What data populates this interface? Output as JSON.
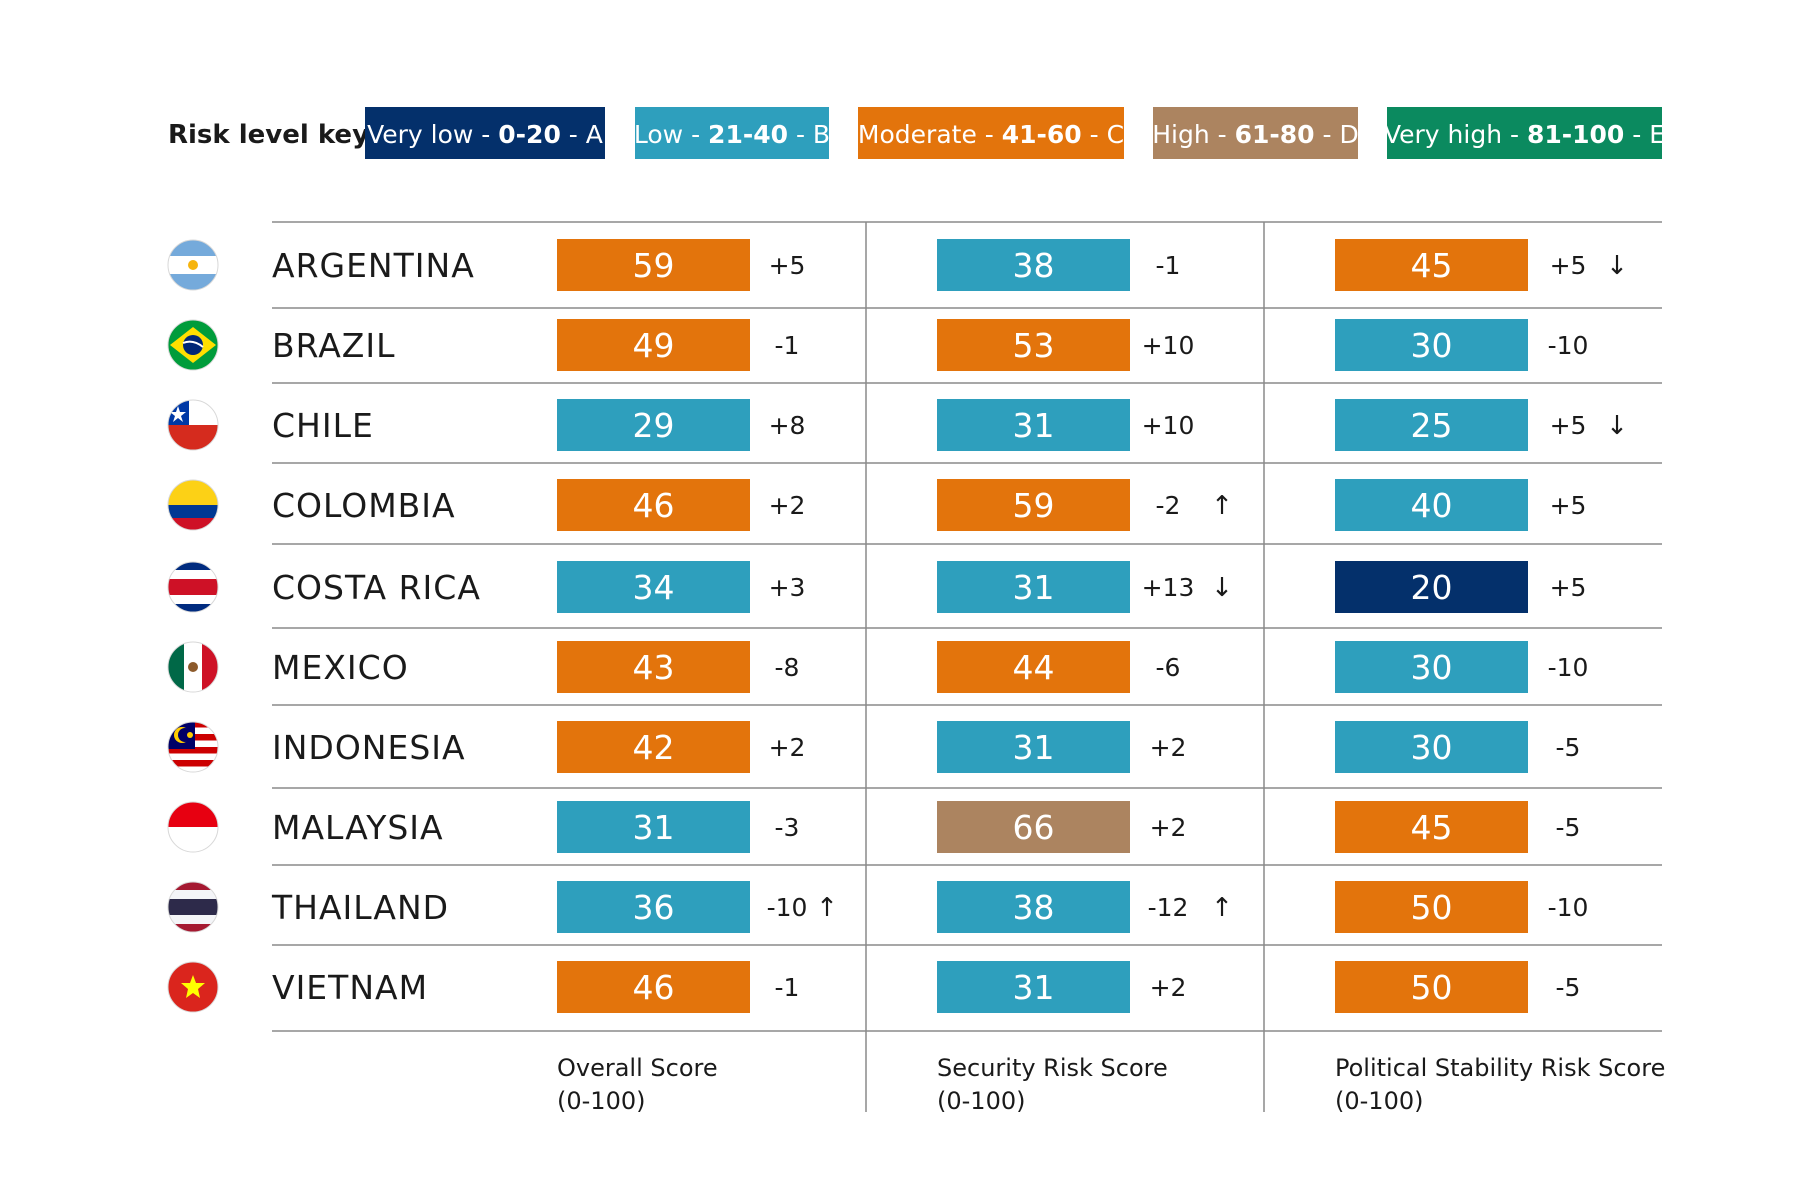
{
  "legend": {
    "title": "Risk level key",
    "items": [
      {
        "level": "Very low",
        "range": "0-20",
        "grade": "A",
        "color": "#04306b"
      },
      {
        "level": "Low",
        "range": "21-40",
        "grade": "B",
        "color": "#2e9fbd"
      },
      {
        "level": "Moderate",
        "range": "41-60",
        "grade": "C",
        "color": "#e3740c"
      },
      {
        "level": "High",
        "range": "61-80",
        "grade": "D",
        "color": "#ac8460"
      },
      {
        "level": "Very high",
        "range": "81-100",
        "grade": "E",
        "color": "#0b8a5f"
      }
    ]
  },
  "chart_data": {
    "type": "table",
    "columns": [
      {
        "title_line1": "Overall Score",
        "title_line2": "(0-100)"
      },
      {
        "title_line1": "Security Risk Score",
        "title_line2": "(0-100)"
      },
      {
        "title_line1": "Political Stability Risk Score",
        "title_line2": "(0-100)"
      }
    ],
    "rows": [
      {
        "country": "ARGENTINA",
        "flag": "argentina-flag-icon",
        "scores": [
          59,
          38,
          45
        ],
        "changes": [
          "+5",
          "-1",
          "+5"
        ],
        "arrows": [
          "",
          "",
          "down"
        ]
      },
      {
        "country": "BRAZIL",
        "flag": "brazil-flag-icon",
        "scores": [
          49,
          53,
          30
        ],
        "changes": [
          "-1",
          "+10",
          "-10"
        ],
        "arrows": [
          "",
          "",
          ""
        ]
      },
      {
        "country": "CHILE",
        "flag": "chile-flag-icon",
        "scores": [
          29,
          31,
          25
        ],
        "changes": [
          "+8",
          "+10",
          "+5"
        ],
        "arrows": [
          "",
          "",
          "down"
        ]
      },
      {
        "country": "COLOMBIA",
        "flag": "colombia-flag-icon",
        "scores": [
          46,
          59,
          40
        ],
        "changes": [
          "+2",
          "-2",
          "+5"
        ],
        "arrows": [
          "",
          "up",
          ""
        ]
      },
      {
        "country": "COSTA RICA",
        "flag": "costa-rica-flag-icon",
        "scores": [
          34,
          31,
          20
        ],
        "changes": [
          "+3",
          "+13",
          "+5"
        ],
        "arrows": [
          "",
          "down",
          ""
        ]
      },
      {
        "country": "MEXICO",
        "flag": "mexico-flag-icon",
        "scores": [
          43,
          44,
          30
        ],
        "changes": [
          "-8",
          "-6",
          "-10"
        ],
        "arrows": [
          "",
          "",
          ""
        ]
      },
      {
        "country": "INDONESIA",
        "flag": "malaysia-flag-icon",
        "scores": [
          42,
          31,
          30
        ],
        "changes": [
          "+2",
          "+2",
          "-5"
        ],
        "arrows": [
          "",
          "",
          ""
        ]
      },
      {
        "country": "MALAYSIA",
        "flag": "indonesia-flag-icon",
        "scores": [
          31,
          66,
          45
        ],
        "changes": [
          "-3",
          "+2",
          "-5"
        ],
        "arrows": [
          "",
          "",
          ""
        ]
      },
      {
        "country": "THAILAND",
        "flag": "thailand-flag-icon",
        "scores": [
          36,
          38,
          50
        ],
        "changes": [
          "-10",
          "-12",
          "-10"
        ],
        "arrows": [
          "up",
          "up",
          ""
        ]
      },
      {
        "country": "VIETNAM",
        "flag": "vietnam-flag-icon",
        "scores": [
          46,
          31,
          50
        ],
        "changes": [
          "-1",
          "+2",
          "-5"
        ],
        "arrows": [
          "",
          "",
          ""
        ]
      }
    ]
  }
}
